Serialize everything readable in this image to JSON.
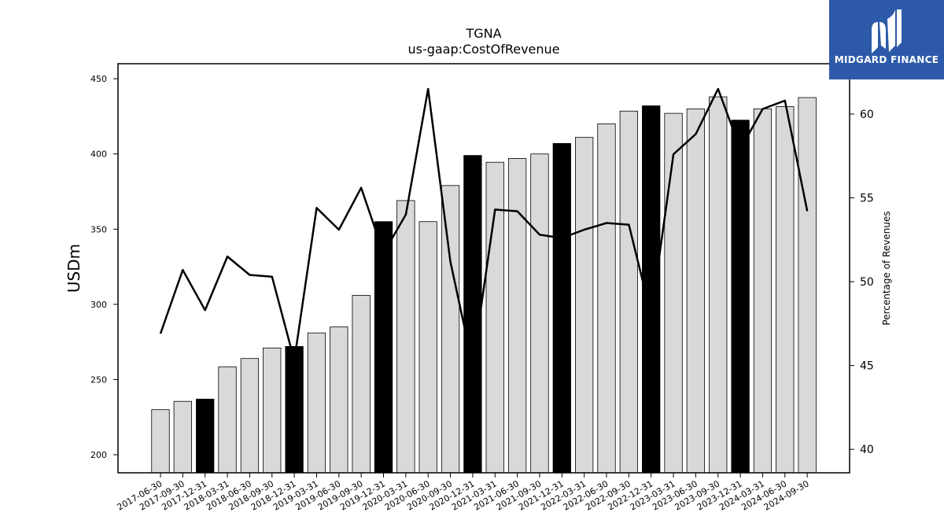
{
  "chart_data": {
    "type": "bar",
    "title": "TGNA",
    "subtitle": "us-gaap:CostOfRevenue",
    "ylabel": "USDm",
    "ylabel_right": "Percentage of Revenues",
    "ylim": [
      188,
      460
    ],
    "ylim_right": [
      38.6,
      63.0
    ],
    "yticks": [
      200,
      250,
      300,
      350,
      400,
      450
    ],
    "yticks_right": [
      40,
      45,
      50,
      55,
      60
    ],
    "categories": [
      "2017-06-30",
      "2017-09-30",
      "2017-12-31",
      "2018-03-31",
      "2018-06-30",
      "2018-09-30",
      "2018-12-31",
      "2019-03-31",
      "2019-06-30",
      "2019-09-30",
      "2019-12-31",
      "2020-03-31",
      "2020-06-30",
      "2020-09-30",
      "2020-12-31",
      "2021-03-31",
      "2021-06-30",
      "2021-09-30",
      "2021-12-31",
      "2022-03-31",
      "2022-06-30",
      "2022-09-30",
      "2022-12-31",
      "2023-03-31",
      "2023-06-30",
      "2023-09-30",
      "2023-12-31",
      "2024-03-31",
      "2024-06-30",
      "2024-09-30"
    ],
    "series": [
      {
        "values": [
          230,
          235.5,
          237,
          258.5,
          264,
          271,
          272,
          281,
          285,
          306,
          355,
          369,
          355,
          379,
          399,
          394.5,
          397,
          400,
          407,
          411,
          420,
          428.5,
          432,
          427,
          430,
          438,
          422.5,
          430,
          431.5,
          437.5
        ],
        "highlight": [
          false,
          false,
          true,
          false,
          false,
          false,
          true,
          false,
          false,
          false,
          true,
          false,
          false,
          false,
          true,
          false,
          false,
          false,
          true,
          false,
          false,
          false,
          true,
          false,
          false,
          false,
          true,
          false,
          false,
          false
        ],
        "axis": "left"
      },
      {
        "values": [
          46.9,
          50.7,
          48.3,
          51.5,
          50.4,
          50.3,
          45.3,
          54.4,
          53.1,
          55.6,
          51.7,
          54.0,
          61.5,
          51.2,
          45.0,
          54.3,
          54.2,
          52.8,
          52.6,
          53.1,
          53.5,
          53.4,
          48.0,
          57.6,
          58.8,
          61.5,
          57.9,
          60.3,
          60.8,
          54.2
        ],
        "axis": "right"
      }
    ],
    "colors": {
      "bar": "#d9d9d9",
      "bar_highlight": "#000000",
      "line": "#000000"
    }
  },
  "logo": {
    "text": "MIDGARD FINANCE",
    "bg": "#2c5aa8"
  }
}
